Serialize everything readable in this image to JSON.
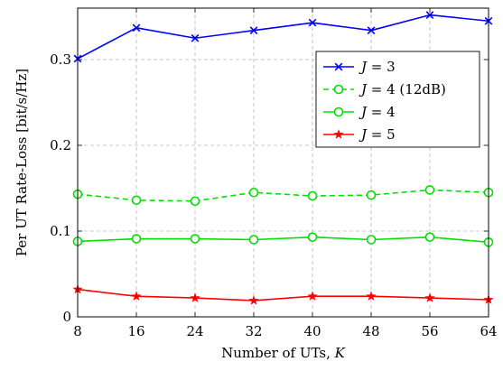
{
  "chart_data": {
    "type": "line",
    "title": "",
    "xlabel": "Number of UTs, ",
    "xlabel_var": "K",
    "ylabel": "Per UT Rate-Loss [bit/s/Hz]",
    "xlim": [
      8,
      64
    ],
    "ylim": [
      0,
      0.36
    ],
    "xticks": [
      "8",
      "16",
      "24",
      "32",
      "40",
      "48",
      "56",
      "64"
    ],
    "yticks": [
      "0",
      "0.1",
      "0.2",
      "0.3"
    ],
    "grid": true,
    "legend_position": "top-right",
    "x": [
      8,
      16,
      24,
      32,
      40,
      48,
      56,
      64
    ],
    "series": [
      {
        "name_var": "J",
        "name_rest": " = 3",
        "color": "#0000ff",
        "marker": "x-cross",
        "dash": "solid",
        "values": [
          0.301,
          0.337,
          0.325,
          0.334,
          0.343,
          0.334,
          0.352,
          0.345
        ]
      },
      {
        "name_var": "J",
        "name_rest": " = 4 (12dB)",
        "color": "#00e000",
        "marker": "open-circle",
        "dash": "dashed",
        "values": [
          0.143,
          0.136,
          0.135,
          0.145,
          0.141,
          0.142,
          0.148,
          0.145
        ]
      },
      {
        "name_var": "J",
        "name_rest": " = 4",
        "color": "#00e000",
        "marker": "open-circle",
        "dash": "solid",
        "values": [
          0.088,
          0.091,
          0.091,
          0.09,
          0.093,
          0.09,
          0.093,
          0.087
        ]
      },
      {
        "name_var": "J",
        "name_rest": " = 5",
        "color": "#ff0000",
        "marker": "star",
        "dash": "solid",
        "values": [
          0.032,
          0.024,
          0.022,
          0.019,
          0.024,
          0.024,
          0.022,
          0.02
        ]
      }
    ]
  }
}
